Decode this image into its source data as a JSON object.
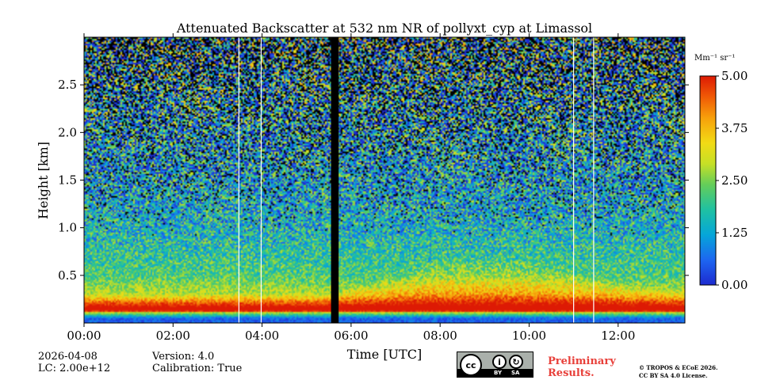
{
  "chart_data": {
    "type": "heatmap",
    "title": "Attenuated Backscatter at 532 nm NR of pollyxt_cyp at Limassol",
    "xlabel": "Time [UTC]",
    "ylabel": "Height [km]",
    "x_unit": "hours UTC",
    "xlim": [
      0,
      13.5
    ],
    "ylim": [
      0,
      3.0
    ],
    "xticks": [
      0,
      2,
      4,
      6,
      8,
      10,
      12
    ],
    "xtick_labels": [
      "00:00",
      "02:00",
      "04:00",
      "06:00",
      "08:00",
      "10:00",
      "12:00"
    ],
    "yticks": [
      0.5,
      1.0,
      1.5,
      2.0,
      2.5
    ],
    "ytick_labels": [
      "0.5",
      "1.0",
      "1.5",
      "2.0",
      "2.5"
    ],
    "colorbar": {
      "unit_label": "Mm⁻¹ sr⁻¹",
      "range": [
        0,
        5
      ],
      "ticks": [
        0,
        1.25,
        2.5,
        3.75,
        5
      ],
      "tick_labels": [
        "0.00",
        "1.25",
        "2.50",
        "3.75",
        "5.00"
      ]
    },
    "data_gaps_hours": [
      [
        5.55,
        5.72
      ]
    ],
    "blank_profiles_hours": [
      3.48,
      3.98,
      11.0,
      11.45
    ],
    "approx_profile": [
      {
        "height_km": 0.05,
        "value": 0.5
      },
      {
        "height_km": 0.15,
        "value": 4.3
      },
      {
        "height_km": 0.3,
        "value": 2.8
      },
      {
        "height_km": 0.5,
        "value": 2.0
      },
      {
        "height_km": 1.0,
        "value": 1.4
      },
      {
        "height_km": 1.5,
        "value": 1.2
      },
      {
        "height_km": 2.0,
        "value": 1.2
      },
      {
        "height_km": 2.5,
        "value": 1.3
      }
    ],
    "aerosol_layer_top_km": [
      {
        "time_h": 0,
        "top_km": 0.3
      },
      {
        "time_h": 5.5,
        "top_km": 0.3
      },
      {
        "time_h": 6.5,
        "top_km": 0.45
      },
      {
        "time_h": 8.0,
        "top_km": 0.7
      },
      {
        "time_h": 10.0,
        "top_km": 0.7
      },
      {
        "time_h": 12.0,
        "top_km": 0.45
      },
      {
        "time_h": 13.5,
        "top_km": 0.35
      }
    ],
    "colors": {
      "colormap": [
        "#1d2bd0",
        "#1d66f0",
        "#05a6d9",
        "#1fc1a2",
        "#64cd5a",
        "#c6e026",
        "#f2db15",
        "#f7a00b",
        "#f05a06",
        "#dd1a04"
      ]
    }
  },
  "footer": {
    "date": "2026-04-08",
    "lc": "LC: 2.00e+12",
    "version": "Version: 4.0",
    "calibration": "Calibration: True",
    "preliminary_line1": "Preliminary",
    "preliminary_line2": "Results.",
    "copyright_line1": "© TROPOS & ECoE 2026.",
    "copyright_line2": "CC BY SA 4.0 License.",
    "license_badge": {
      "by": "BY",
      "sa": "SA"
    }
  }
}
